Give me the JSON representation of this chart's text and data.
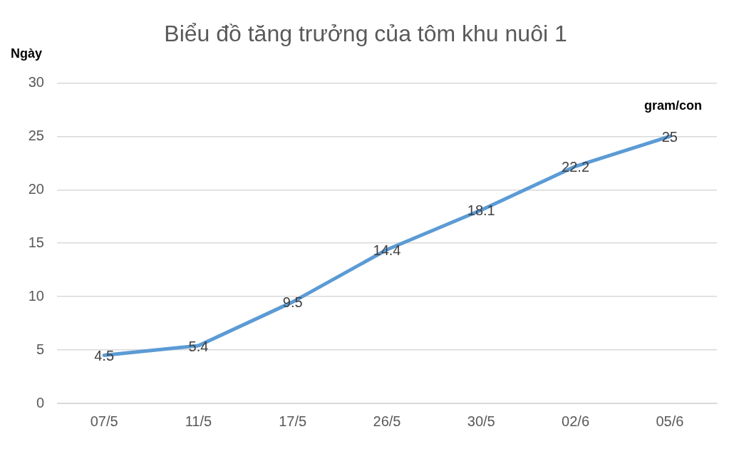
{
  "chart_data": {
    "type": "line",
    "title": "Biểu đồ tăng trưởng của tôm khu nuôi 1",
    "ylabel": "Ngày",
    "xlabel": "gram/con",
    "categories": [
      "07/5",
      "11/5",
      "17/5",
      "26/5",
      "30/5",
      "02/6",
      "05/6"
    ],
    "series": [
      {
        "color": "#5b9bd5",
        "values": [
          4.5,
          5.4,
          9.5,
          14.4,
          18.1,
          22.2,
          25
        ]
      }
    ],
    "ylim": [
      0,
      30
    ],
    "yticks": [
      0,
      5,
      10,
      15,
      20,
      25,
      30
    ],
    "grid": "y",
    "legend": false,
    "marker": "none",
    "line_style": "solid",
    "data_labels": true
  }
}
